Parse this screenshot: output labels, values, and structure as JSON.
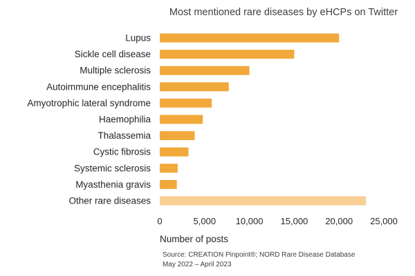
{
  "chart_data": {
    "type": "bar",
    "orientation": "horizontal",
    "title": "Most mentioned rare diseases by eHCPs on Twitter",
    "xlabel": "Number of posts",
    "ylabel": "",
    "xlim": [
      0,
      25000
    ],
    "xticks": [
      0,
      5000,
      10000,
      15000,
      20000,
      25000
    ],
    "xtick_labels": [
      "0",
      "5,000",
      "10,000",
      "15,000",
      "20,000",
      "25,000"
    ],
    "grid": false,
    "categories": [
      "Lupus",
      "Sickle cell disease",
      "Multiple sclerosis",
      "Autoimmune encephalitis",
      "Amyotrophic lateral syndrome",
      "Haemophilia",
      "Thalassemia",
      "Cystic fibrosis",
      "Systemic sclerosis",
      "Myasthenia gravis",
      "Other rare diseases"
    ],
    "values": [
      20000,
      15000,
      10000,
      7700,
      5800,
      4800,
      3900,
      3200,
      2000,
      1900,
      23000
    ],
    "colors": [
      "#f2a93b",
      "#f2a93b",
      "#f2a93b",
      "#f2a93b",
      "#f2a93b",
      "#f2a93b",
      "#f2a93b",
      "#f2a93b",
      "#f2a93b",
      "#f2a93b",
      "#f8cf95"
    ],
    "source": [
      "Source: CREATION Pinpoint®; NORD Rare Disease Database",
      "May 2022 – April 2023"
    ]
  }
}
